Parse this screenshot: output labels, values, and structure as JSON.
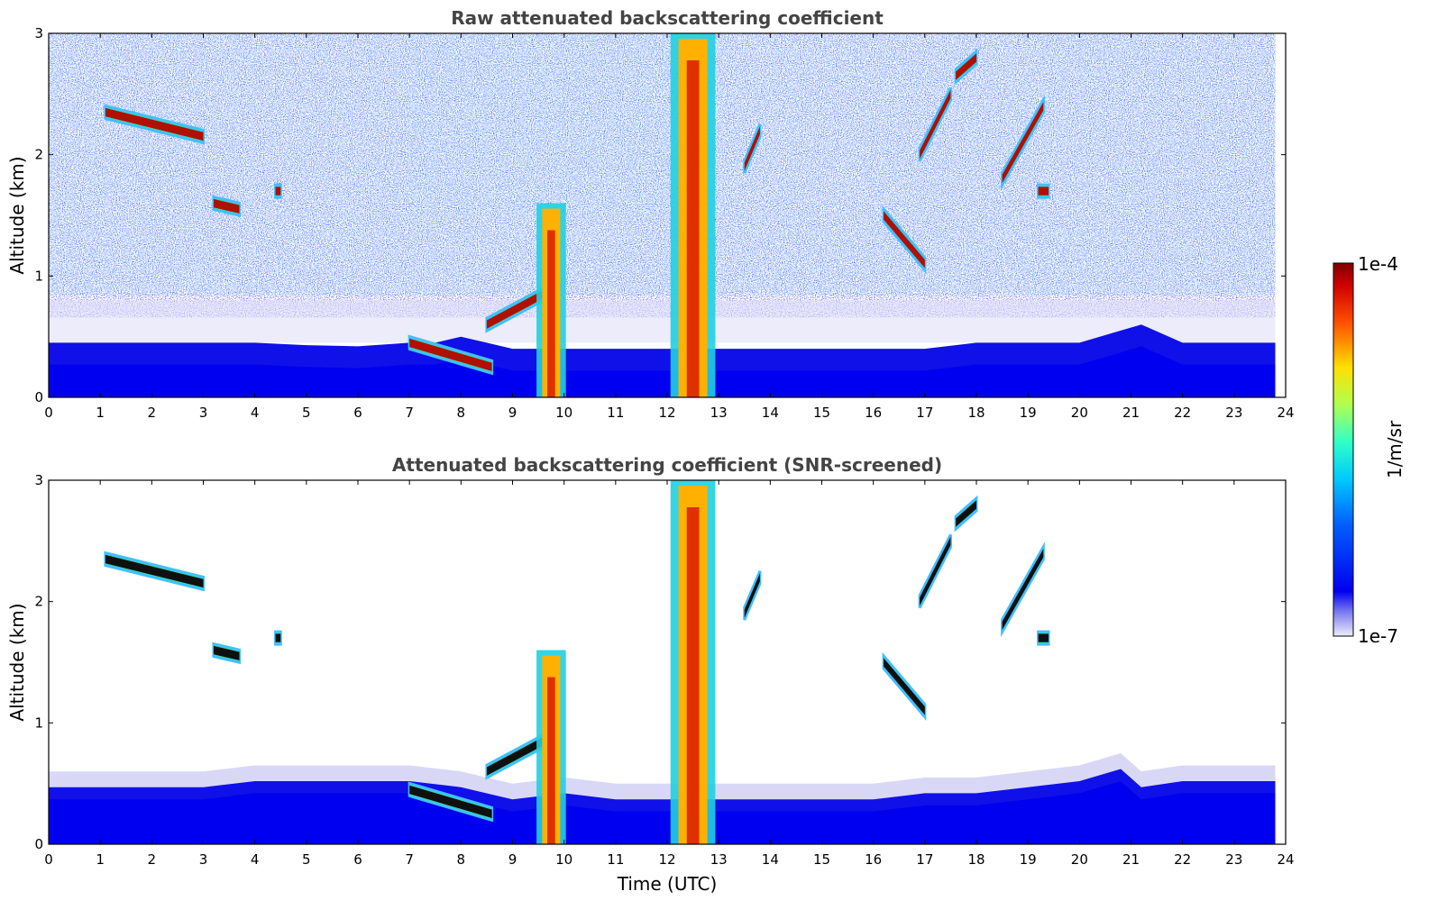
{
  "chart_data": [
    {
      "type": "heatmap",
      "title": "Raw attenuated backscattering coefficient",
      "xlabel": "",
      "ylabel": "Altitude (km)",
      "xlim": [
        0,
        24
      ],
      "ylim": [
        0,
        3
      ],
      "x_ticks": [
        "0",
        "1",
        "2",
        "3",
        "4",
        "5",
        "6",
        "7",
        "8",
        "9",
        "10",
        "11",
        "12",
        "13",
        "14",
        "15",
        "16",
        "17",
        "18",
        "19",
        "20",
        "21",
        "22",
        "23",
        "24"
      ],
      "y_ticks": [
        "0",
        "1",
        "2",
        "3"
      ],
      "boundary_layer_top_km": [
        [
          0,
          0.45
        ],
        [
          1,
          0.45
        ],
        [
          2,
          0.45
        ],
        [
          3,
          0.45
        ],
        [
          4,
          0.45
        ],
        [
          5,
          0.43
        ],
        [
          6,
          0.42
        ],
        [
          7,
          0.45
        ],
        [
          7.5,
          0.45
        ],
        [
          8,
          0.5
        ],
        [
          8.5,
          0.45
        ],
        [
          9,
          0.4
        ],
        [
          10,
          0.4
        ],
        [
          11,
          0.4
        ],
        [
          12,
          0.4
        ],
        [
          13,
          0.4
        ],
        [
          14,
          0.4
        ],
        [
          15,
          0.4
        ],
        [
          16,
          0.4
        ],
        [
          17,
          0.4
        ],
        [
          18,
          0.45
        ],
        [
          19,
          0.45
        ],
        [
          20,
          0.45
        ],
        [
          20.8,
          0.55
        ],
        [
          21.2,
          0.6
        ],
        [
          22,
          0.45
        ],
        [
          23,
          0.45
        ],
        [
          23.8,
          0.45
        ]
      ],
      "cloud_features": [
        {
          "t_start": 1.1,
          "t_end": 3.0,
          "alt_start_km": 2.35,
          "alt_end_km": 2.15
        },
        {
          "t_start": 3.2,
          "t_end": 3.7,
          "alt_start_km": 1.6,
          "alt_end_km": 1.55
        },
        {
          "t_start": 4.4,
          "t_end": 4.5,
          "alt_start_km": 1.7,
          "alt_end_km": 1.7
        },
        {
          "t_start": 7.0,
          "t_end": 8.6,
          "alt_start_km": 0.45,
          "alt_end_km": 0.25
        },
        {
          "t_start": 8.5,
          "t_end": 9.6,
          "alt_start_km": 0.6,
          "alt_end_km": 0.85
        },
        {
          "t_start": 9.5,
          "t_end": 10.0,
          "alt_start_km": 0.0,
          "alt_end_km": 1.6
        },
        {
          "t_start": 12.1,
          "t_end": 12.9,
          "alt_start_km": 0.0,
          "alt_end_km": 3.0
        },
        {
          "t_start": 13.5,
          "t_end": 13.8,
          "alt_start_km": 1.9,
          "alt_end_km": 2.2
        },
        {
          "t_start": 16.2,
          "t_end": 17.0,
          "alt_start_km": 1.5,
          "alt_end_km": 1.1
        },
        {
          "t_start": 16.9,
          "t_end": 17.5,
          "alt_start_km": 2.0,
          "alt_end_km": 2.5
        },
        {
          "t_start": 17.6,
          "t_end": 18.0,
          "alt_start_km": 2.65,
          "alt_end_km": 2.8
        },
        {
          "t_start": 18.5,
          "t_end": 19.3,
          "alt_start_km": 1.8,
          "alt_end_km": 2.4
        },
        {
          "t_start": 19.2,
          "t_end": 19.4,
          "alt_start_km": 1.7,
          "alt_end_km": 1.7
        }
      ]
    },
    {
      "type": "heatmap",
      "title": "Attenuated backscattering coefficient (SNR-screened)",
      "xlabel": "Time (UTC)",
      "ylabel": "Altitude (km)",
      "xlim": [
        0,
        24
      ],
      "ylim": [
        0,
        3
      ],
      "x_ticks": [
        "0",
        "1",
        "2",
        "3",
        "4",
        "5",
        "6",
        "7",
        "8",
        "9",
        "10",
        "11",
        "12",
        "13",
        "14",
        "15",
        "16",
        "17",
        "18",
        "19",
        "20",
        "21",
        "22",
        "23",
        "24"
      ],
      "y_ticks": [
        "0",
        "1",
        "2",
        "3"
      ],
      "boundary_layer_top_km": [
        [
          0,
          0.55
        ],
        [
          1,
          0.55
        ],
        [
          2,
          0.55
        ],
        [
          3,
          0.55
        ],
        [
          4,
          0.6
        ],
        [
          5,
          0.6
        ],
        [
          6,
          0.6
        ],
        [
          7,
          0.6
        ],
        [
          8,
          0.55
        ],
        [
          9,
          0.45
        ],
        [
          10,
          0.5
        ],
        [
          11,
          0.45
        ],
        [
          12,
          0.45
        ],
        [
          13,
          0.45
        ],
        [
          14,
          0.45
        ],
        [
          15,
          0.45
        ],
        [
          16,
          0.45
        ],
        [
          17,
          0.5
        ],
        [
          18,
          0.5
        ],
        [
          19,
          0.55
        ],
        [
          20,
          0.6
        ],
        [
          20.8,
          0.7
        ],
        [
          21.2,
          0.55
        ],
        [
          22,
          0.6
        ],
        [
          23,
          0.6
        ],
        [
          23.8,
          0.6
        ]
      ]
    }
  ],
  "colorbar": {
    "max_label": "1e-4",
    "min_label": "1e-7",
    "unit_label": "1/m/sr",
    "colormap": "jet"
  }
}
